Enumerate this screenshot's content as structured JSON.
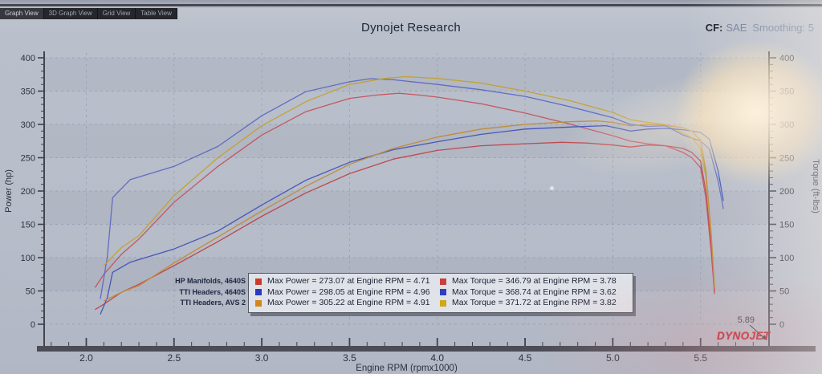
{
  "header": {
    "title": "Dynojet Research",
    "cf_label": "CF:",
    "cf_value": "SAE",
    "smoothing": "Smoothing: 5"
  },
  "tabs": [
    {
      "label": "Graph View",
      "active": true
    },
    {
      "label": "3D Graph View",
      "active": false
    },
    {
      "label": "Grid View",
      "active": false
    },
    {
      "label": "Table View",
      "active": false
    }
  ],
  "branding": {
    "logo": "DYNOJET"
  },
  "chart_data": {
    "type": "line",
    "title": "Dynojet Research",
    "xlabel": "Engine RPM (rpmx1000)",
    "ylabel_left": "Power (hp)",
    "ylabel_right": "Torque (ft-lbs)",
    "xlim": [
      1.76,
      5.89
    ],
    "ylim": [
      0,
      400
    ],
    "x_major_ticks": [
      2.0,
      2.5,
      3.0,
      3.5,
      4.0,
      4.5,
      5.0,
      5.5
    ],
    "x_minor_step": 0.1,
    "y_ticks": [
      0,
      50,
      100,
      150,
      200,
      250,
      300,
      350,
      400
    ],
    "y_minor_step": 10,
    "grid": "dashed",
    "legend_position": "bottom-center",
    "cursor_label": "5.89",
    "legend_templates": {
      "power": "Max Power = {value} at Engine RPM = {rpm}",
      "torque": "Max Torque = {value} at Engine RPM = {rpm}"
    },
    "runs": [
      {
        "name": "HP Manifolds, 4640S",
        "power_color": "#bf4048",
        "torque_color": "#c4505c",
        "swatch_power": "#cc3b2a",
        "swatch_torque": "#c8413d",
        "max_power": {
          "value": 273.07,
          "rpm": 4.71
        },
        "max_torque": {
          "value": 346.79,
          "rpm": 3.78
        },
        "power_curve": [
          [
            2.05,
            22
          ],
          [
            2.1,
            30
          ],
          [
            2.2,
            48
          ],
          [
            2.3,
            60
          ],
          [
            2.5,
            88
          ],
          [
            2.75,
            124
          ],
          [
            3.0,
            162
          ],
          [
            3.25,
            197
          ],
          [
            3.5,
            226
          ],
          [
            3.75,
            248
          ],
          [
            4.0,
            261
          ],
          [
            4.25,
            268
          ],
          [
            4.5,
            271
          ],
          [
            4.71,
            273.1
          ],
          [
            4.85,
            272
          ],
          [
            5.0,
            269
          ],
          [
            5.1,
            266
          ],
          [
            5.2,
            269
          ],
          [
            5.3,
            268
          ],
          [
            5.4,
            264
          ],
          [
            5.45,
            258
          ],
          [
            5.5,
            245
          ],
          [
            5.53,
            200
          ],
          [
            5.56,
            120
          ],
          [
            5.58,
            48
          ]
        ],
        "torque_curve": [
          [
            2.05,
            55
          ],
          [
            2.1,
            75
          ],
          [
            2.2,
            105
          ],
          [
            2.3,
            128
          ],
          [
            2.5,
            183
          ],
          [
            2.75,
            237
          ],
          [
            3.0,
            284
          ],
          [
            3.25,
            319
          ],
          [
            3.5,
            339
          ],
          [
            3.65,
            344
          ],
          [
            3.78,
            346.8
          ],
          [
            3.9,
            344
          ],
          [
            4.0,
            341
          ],
          [
            4.25,
            331
          ],
          [
            4.5,
            317
          ],
          [
            4.75,
            301
          ],
          [
            5.0,
            283
          ],
          [
            5.1,
            275
          ],
          [
            5.2,
            271
          ],
          [
            5.3,
            268
          ],
          [
            5.4,
            258
          ],
          [
            5.45,
            250
          ],
          [
            5.5,
            235
          ],
          [
            5.53,
            190
          ],
          [
            5.56,
            110
          ],
          [
            5.58,
            45
          ]
        ]
      },
      {
        "name": "TTI Headers, 4640S",
        "power_color": "#3c4fb8",
        "torque_color": "#5a66c2",
        "swatch_power": "#2b3bbf",
        "swatch_torque": "#2f40c0",
        "max_power": {
          "value": 298.05,
          "rpm": 4.96
        },
        "max_torque": {
          "value": 368.74,
          "rpm": 3.62
        },
        "power_curve": [
          [
            2.08,
            15
          ],
          [
            2.12,
            40
          ],
          [
            2.15,
            78
          ],
          [
            2.25,
            93
          ],
          [
            2.5,
            113
          ],
          [
            2.75,
            140
          ],
          [
            3.0,
            179
          ],
          [
            3.25,
            216
          ],
          [
            3.5,
            243
          ],
          [
            3.75,
            262
          ],
          [
            4.0,
            274
          ],
          [
            4.25,
            285
          ],
          [
            4.5,
            293
          ],
          [
            4.75,
            296
          ],
          [
            4.96,
            298.1
          ],
          [
            5.05,
            293
          ],
          [
            5.1,
            290
          ],
          [
            5.2,
            293
          ],
          [
            5.3,
            294
          ],
          [
            5.4,
            292
          ],
          [
            5.5,
            288
          ],
          [
            5.55,
            278
          ],
          [
            5.6,
            230
          ],
          [
            5.63,
            185
          ]
        ],
        "torque_curve": [
          [
            2.08,
            38
          ],
          [
            2.12,
            101
          ],
          [
            2.15,
            190
          ],
          [
            2.25,
            217
          ],
          [
            2.5,
            237
          ],
          [
            2.75,
            267
          ],
          [
            3.0,
            313
          ],
          [
            3.25,
            349
          ],
          [
            3.5,
            364
          ],
          [
            3.62,
            368.7
          ],
          [
            3.75,
            367
          ],
          [
            4.0,
            360
          ],
          [
            4.25,
            352
          ],
          [
            4.5,
            342
          ],
          [
            4.75,
            327
          ],
          [
            5.0,
            310
          ],
          [
            5.1,
            300
          ],
          [
            5.2,
            297
          ],
          [
            5.3,
            298
          ],
          [
            5.4,
            284
          ],
          [
            5.5,
            275
          ],
          [
            5.55,
            263
          ],
          [
            5.6,
            215
          ],
          [
            5.63,
            173
          ]
        ]
      },
      {
        "name": "TTI Headers, AVS 2",
        "power_color": "#c08a30",
        "torque_color": "#c4a028",
        "swatch_power": "#d2891a",
        "swatch_torque": "#d0a818",
        "max_power": {
          "value": 305.22,
          "rpm": 4.91
        },
        "max_torque": {
          "value": 371.72,
          "rpm": 3.82
        },
        "power_curve": [
          [
            2.1,
            35
          ],
          [
            2.2,
            48
          ],
          [
            2.3,
            58
          ],
          [
            2.5,
            92
          ],
          [
            2.75,
            131
          ],
          [
            3.0,
            170
          ],
          [
            3.25,
            207
          ],
          [
            3.5,
            240
          ],
          [
            3.75,
            264
          ],
          [
            4.0,
            281
          ],
          [
            4.25,
            293
          ],
          [
            4.5,
            300
          ],
          [
            4.75,
            304
          ],
          [
            4.91,
            305.2
          ],
          [
            5.0,
            303
          ],
          [
            5.1,
            298
          ],
          [
            5.2,
            300
          ],
          [
            5.3,
            299
          ],
          [
            5.4,
            295
          ],
          [
            5.45,
            290
          ],
          [
            5.5,
            276
          ],
          [
            5.53,
            230
          ],
          [
            5.56,
            140
          ],
          [
            5.58,
            55
          ]
        ],
        "torque_curve": [
          [
            2.1,
            88
          ],
          [
            2.2,
            115
          ],
          [
            2.3,
            133
          ],
          [
            2.5,
            193
          ],
          [
            2.75,
            250
          ],
          [
            3.0,
            298
          ],
          [
            3.25,
            334
          ],
          [
            3.5,
            360
          ],
          [
            3.7,
            369
          ],
          [
            3.82,
            371.7
          ],
          [
            4.0,
            369
          ],
          [
            4.25,
            362
          ],
          [
            4.5,
            350
          ],
          [
            4.75,
            336
          ],
          [
            5.0,
            318
          ],
          [
            5.1,
            307
          ],
          [
            5.2,
            303
          ],
          [
            5.3,
            300
          ],
          [
            5.4,
            287
          ],
          [
            5.45,
            280
          ],
          [
            5.5,
            264
          ],
          [
            5.53,
            222
          ],
          [
            5.56,
            135
          ],
          [
            5.58,
            52
          ]
        ]
      }
    ]
  }
}
